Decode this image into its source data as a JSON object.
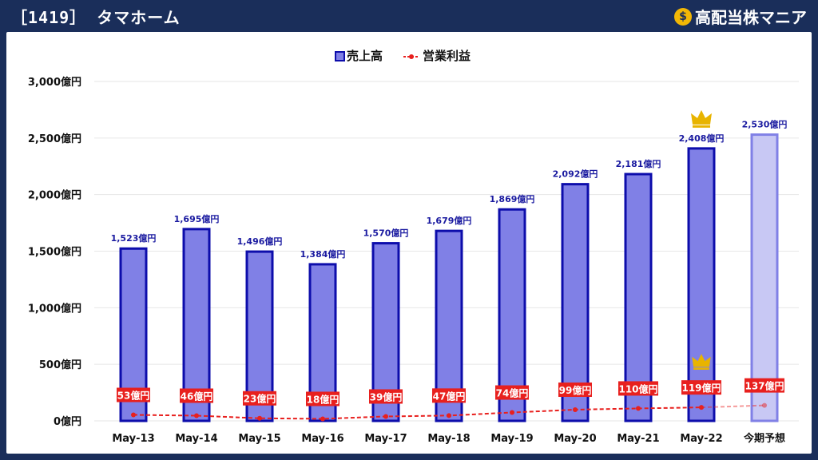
{
  "header": {
    "title": "［1419］ タマホーム",
    "brand": "高配当株マニア",
    "brand_icon": "money-bag-icon"
  },
  "colors": {
    "bar_fill": "#8080e6",
    "bar_stroke": "#0d0dab",
    "forecast_fill": "#c8c8f4",
    "forecast_stroke": "#8080e6",
    "line": "#e8201e",
    "label_text": "#1a1aa0",
    "crown": "#e8b400"
  },
  "chart_data": {
    "type": "bar",
    "categories": [
      "May-13",
      "May-14",
      "May-15",
      "May-16",
      "May-17",
      "May-18",
      "May-19",
      "May-20",
      "May-21",
      "May-22",
      "今期予想"
    ],
    "series": [
      {
        "name": "売上高",
        "type": "bar",
        "values": [
          1523,
          1695,
          1496,
          1384,
          1570,
          1679,
          1869,
          2092,
          2181,
          2408,
          2530
        ],
        "labels": [
          "1,523億円",
          "1,695億円",
          "1,496億円",
          "1,384億円",
          "1,570億円",
          "1,679億円",
          "1,869億円",
          "2,092億円",
          "2,181億円",
          "2,408億円",
          "2,530億円"
        ]
      },
      {
        "name": "営業利益",
        "type": "line",
        "values": [
          53,
          46,
          23,
          18,
          39,
          47,
          74,
          99,
          110,
          119,
          137
        ],
        "labels": [
          "53億円",
          "46億円",
          "23億円",
          "18億円",
          "39億円",
          "47億円",
          "74億円",
          "99億円",
          "110億円",
          "119億円",
          "137億円"
        ]
      }
    ],
    "forecast_index": 10,
    "crown_index": 9,
    "ylim": [
      0,
      3000
    ],
    "yticks": [
      0,
      500,
      1000,
      1500,
      2000,
      2500,
      3000
    ],
    "ytick_labels": [
      "0億円",
      "500億円",
      "1,000億円",
      "1,500億円",
      "2,000億円",
      "2,500億円",
      "3,000億円"
    ],
    "grid": true,
    "legend": "top-center"
  }
}
